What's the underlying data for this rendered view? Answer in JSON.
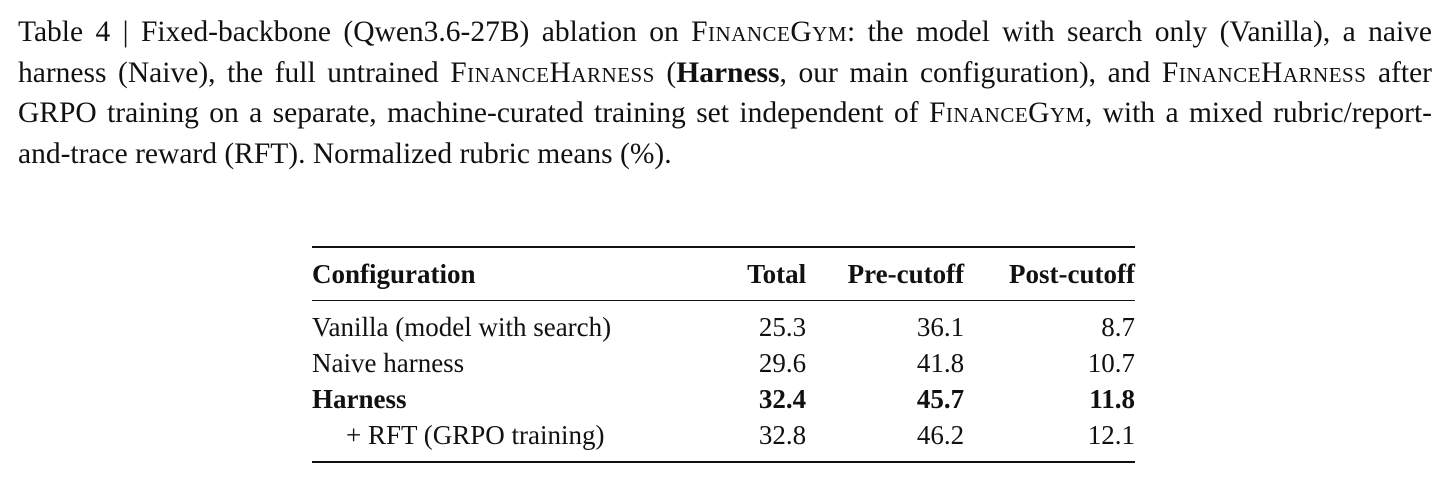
{
  "caption": {
    "segments": [
      {
        "text": "Table 4 | Fixed-backbone (Qwen3.6-27B) ablation on ",
        "style": "normal"
      },
      {
        "text": "FinanceGym",
        "style": "smallcaps"
      },
      {
        "text": ": the model with search only (Vanilla), a naive harness (Naive), the full untrained ",
        "style": "normal"
      },
      {
        "text": "FinanceHarness",
        "style": "smallcaps"
      },
      {
        "text": " (",
        "style": "normal"
      },
      {
        "text": "Harness",
        "style": "bold"
      },
      {
        "text": ", our main con­figuration), and ",
        "style": "normal"
      },
      {
        "text": "FinanceHarness",
        "style": "smallcaps"
      },
      {
        "text": " after GRPO training on a separate, machine-curated training set independent of ",
        "style": "normal"
      },
      {
        "text": "FinanceGym",
        "style": "smallcaps"
      },
      {
        "text": ", with a mixed rubric/report-and-trace reward (RFT). Normalized rubric means (%).",
        "style": "normal"
      }
    ]
  },
  "table": {
    "header": [
      "Configuration",
      "Total",
      "Pre-cutoff",
      "Post-cutoff"
    ],
    "rows": [
      {
        "cells": [
          "Vanilla (model with search)",
          25.3,
          36.1,
          8.7
        ],
        "bold": false,
        "indent": false
      },
      {
        "cells": [
          "Naive harness",
          29.6,
          41.8,
          10.7
        ],
        "bold": false,
        "indent": false
      },
      {
        "cells": [
          "Harness",
          32.4,
          45.7,
          11.8
        ],
        "bold": true,
        "indent": false
      },
      {
        "cells": [
          "+ RFT (GRPO training)",
          32.8,
          46.2,
          12.1
        ],
        "bold": false,
        "indent": true
      }
    ]
  }
}
